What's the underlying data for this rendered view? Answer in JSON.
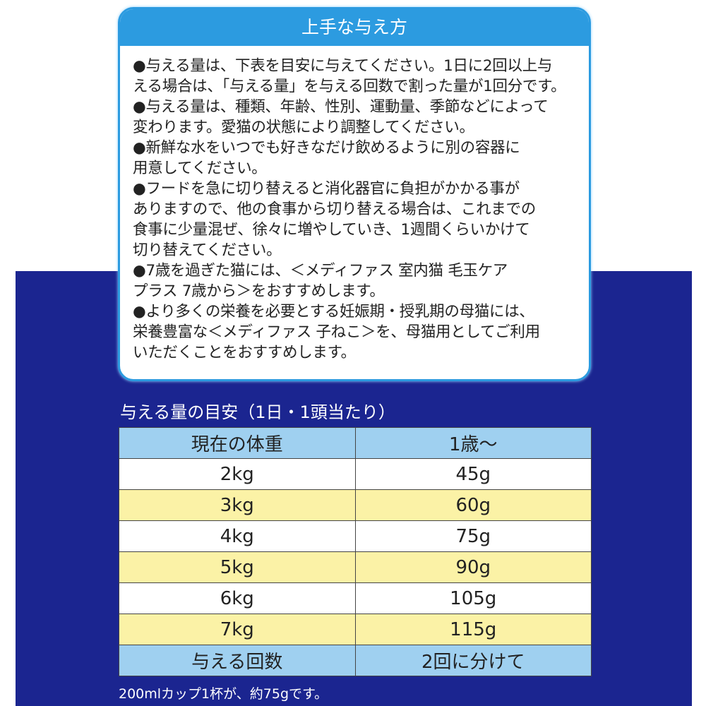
{
  "card": {
    "title": "上手な与え方",
    "lines": [
      "●与える量は、下表を目安に与えてください。1日に2回以上与",
      "える場合は、「与える量」を与える回数で割った量が1回分です。",
      "●与える量は、種類、年齢、性別、運動量、季節などによって",
      "変わります。愛猫の状態により調整してください。",
      "●新鮮な水をいつでも好きなだけ飲めるように別の容器に",
      "用意してください。",
      "●フードを急に切り替えると消化器官に負担がかかる事が",
      "ありますので、他の食事から切り替える場合は、これまでの",
      "食事に少量混ぜ、徐々に増やしていき、1週間くらいかけて",
      "切り替えてください。",
      "●7歳を過ぎた猫には、＜メディファス 室内猫 毛玉ケア",
      "プラス 7歳から＞をおすすめします。",
      "●より多くの栄養を必要とする妊娠期・授乳期の母猫には、",
      "栄養豊富な＜メディファス 子ねこ＞を、母猫用としてご利用",
      "いただくことをおすすめします。"
    ]
  },
  "table": {
    "title": "与える量の目安（1日・1頭当たり）",
    "headers": [
      "現在の体重",
      "1歳～"
    ],
    "rows": [
      [
        "2kg",
        "45g"
      ],
      [
        "3kg",
        "60g"
      ],
      [
        "4kg",
        "75g"
      ],
      [
        "5kg",
        "90g"
      ],
      [
        "6kg",
        "105g"
      ],
      [
        "7kg",
        "115g"
      ]
    ],
    "footer": [
      "与える回数",
      "2回に分けて"
    ],
    "note": "200mlカップ1杯が、約75gです。"
  },
  "colors": {
    "navy": "#1b2590",
    "accent_blue": "#2c9be0",
    "header_row": "#9fd0f0",
    "stripe_yellow": "#fbf2a6"
  }
}
